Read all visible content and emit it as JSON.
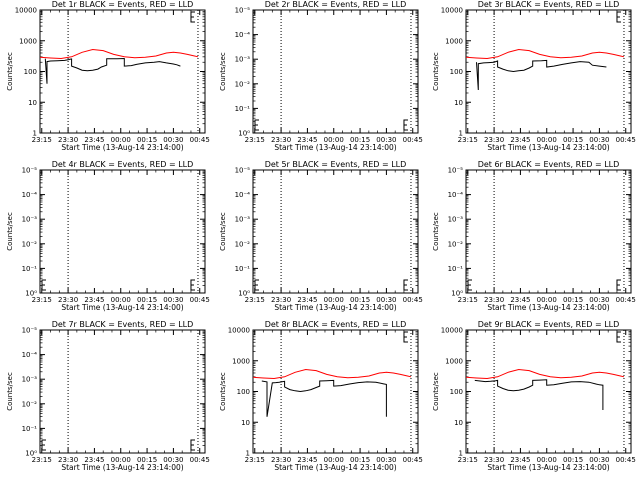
{
  "figure": {
    "x_label": "Start Time (13-Aug-14 23:14:00)",
    "y_label": "Counts/sec"
  },
  "colors": {
    "events": "#000000",
    "lld": "#ff0000",
    "axes": "#000000",
    "marker_lines": "#000000"
  },
  "chart_data": [
    {
      "type": "line",
      "title": "Det 1r BLACK = Events, RED = LLD",
      "x_ticks": [
        "23:15",
        "23:30",
        "23:45",
        "00:00",
        "00:15",
        "00:30",
        "00:45"
      ],
      "y_ticks": [
        "1",
        "10",
        "100",
        "1000",
        "10000"
      ],
      "y_scale": "log",
      "y_range": [
        1,
        10000
      ],
      "x_range_minutes": [
        0,
        94
      ],
      "vertical_markers_minutes": [
        16,
        90
      ],
      "series": [
        {
          "name": "LLD",
          "color": "#ff0000",
          "x": [
            0,
            6,
            12,
            18,
            24,
            30,
            36,
            42,
            48,
            54,
            60,
            66,
            72,
            76,
            80,
            84,
            88,
            90
          ],
          "y": [
            290,
            275,
            265,
            300,
            420,
            520,
            480,
            360,
            300,
            280,
            290,
            320,
            400,
            420,
            400,
            360,
            320,
            300
          ]
        },
        {
          "name": "Events",
          "color": "#000000",
          "x": [
            3,
            4,
            4,
            6,
            10,
            14,
            16,
            17,
            18,
            18,
            21,
            24,
            27,
            30,
            33,
            35,
            38,
            38,
            44,
            48,
            48,
            52,
            55,
            60,
            65,
            68,
            72,
            76,
            78,
            80
          ],
          "y": [
            260,
            40,
            210,
            220,
            225,
            230,
            240,
            250,
            255,
            150,
            130,
            110,
            105,
            110,
            120,
            140,
            160,
            260,
            260,
            265,
            150,
            155,
            170,
            190,
            200,
            210,
            190,
            175,
            165,
            150
          ]
        }
      ]
    },
    {
      "type": "line",
      "title": "Det 2r BLACK = Events, RED = LLD",
      "x_ticks": [
        "23:15",
        "23:30",
        "23:45",
        "00:00",
        "00:15",
        "00:30",
        "00:45"
      ],
      "y_ticks": [
        "10⁰",
        "10⁻¹",
        "10⁻²",
        "10⁻³",
        "10⁻⁴",
        "10⁻⁵"
      ],
      "y_scale": "log",
      "x_range_minutes": [
        0,
        94
      ],
      "vertical_markers_minutes": [
        16,
        90
      ],
      "series": []
    },
    {
      "type": "line",
      "title": "Det 3r BLACK = Events, RED = LLD",
      "x_ticks": [
        "23:15",
        "23:30",
        "23:45",
        "00:00",
        "00:15",
        "00:30",
        "00:45"
      ],
      "y_ticks": [
        "1",
        "10",
        "100",
        "1000",
        "10000"
      ],
      "y_scale": "log",
      "y_range": [
        1,
        10000
      ],
      "x_range_minutes": [
        0,
        94
      ],
      "vertical_markers_minutes": [
        16,
        90
      ],
      "series": [
        {
          "name": "LLD",
          "color": "#ff0000",
          "x": [
            0,
            6,
            12,
            18,
            24,
            30,
            36,
            42,
            48,
            54,
            60,
            66,
            72,
            76,
            80,
            84,
            88,
            90
          ],
          "y": [
            290,
            275,
            265,
            300,
            420,
            520,
            480,
            360,
            300,
            280,
            290,
            320,
            400,
            420,
            400,
            360,
            320,
            300
          ]
        },
        {
          "name": "Events",
          "color": "#000000",
          "x": [
            6,
            7,
            7,
            10,
            13,
            16,
            17,
            18,
            18,
            21,
            24,
            27,
            30,
            33,
            36,
            38,
            38,
            43,
            46,
            46,
            50,
            55,
            60,
            65,
            70,
            72,
            76,
            80
          ],
          "y": [
            200,
            25,
            180,
            190,
            195,
            200,
            210,
            220,
            140,
            120,
            105,
            100,
            105,
            110,
            130,
            150,
            220,
            225,
            230,
            140,
            150,
            170,
            190,
            210,
            200,
            160,
            150,
            140
          ]
        }
      ]
    },
    {
      "type": "line",
      "title": "Det 4r BLACK = Events, RED = LLD",
      "x_ticks": [
        "23:15",
        "23:30",
        "23:45",
        "00:00",
        "00:15",
        "00:30",
        "00:45"
      ],
      "y_ticks": [
        "10⁰",
        "10⁻¹",
        "10⁻²",
        "10⁻³",
        "10⁻⁴",
        "10⁻⁵"
      ],
      "y_scale": "log",
      "x_range_minutes": [
        0,
        94
      ],
      "vertical_markers_minutes": [
        16,
        90
      ],
      "series": []
    },
    {
      "type": "line",
      "title": "Det 5r BLACK = Events, RED = LLD",
      "x_ticks": [
        "23:15",
        "23:30",
        "23:45",
        "00:00",
        "00:15",
        "00:30",
        "00:45"
      ],
      "y_ticks": [
        "10⁰",
        "10⁻¹",
        "10⁻²",
        "10⁻³",
        "10⁻⁴",
        "10⁻⁵"
      ],
      "y_scale": "log",
      "x_range_minutes": [
        0,
        94
      ],
      "vertical_markers_minutes": [
        16,
        90
      ],
      "series": []
    },
    {
      "type": "line",
      "title": "Det 6r BLACK = Events, RED = LLD",
      "x_ticks": [
        "23:15",
        "23:30",
        "23:45",
        "00:00",
        "00:15",
        "00:30",
        "00:45"
      ],
      "y_ticks": [
        "10⁰",
        "10⁻¹",
        "10⁻²",
        "10⁻³",
        "10⁻⁴",
        "10⁻⁵"
      ],
      "y_scale": "log",
      "x_range_minutes": [
        0,
        94
      ],
      "vertical_markers_minutes": [
        16,
        90
      ],
      "series": []
    },
    {
      "type": "line",
      "title": "Det 7r BLACK = Events, RED = LLD",
      "x_ticks": [
        "23:15",
        "23:30",
        "23:45",
        "00:00",
        "00:15",
        "00:30",
        "00:45"
      ],
      "y_ticks": [
        "10⁰",
        "10⁻¹",
        "10⁻²",
        "10⁻³",
        "10⁻⁴",
        "10⁻⁵"
      ],
      "y_scale": "log",
      "x_range_minutes": [
        0,
        94
      ],
      "vertical_markers_minutes": [
        16,
        90
      ],
      "series": []
    },
    {
      "type": "line",
      "title": "Det 8r BLACK = Events, RED = LLD",
      "x_ticks": [
        "23:15",
        "23:30",
        "23:45",
        "00:00",
        "00:15",
        "00:30",
        "00:45"
      ],
      "y_ticks": [
        "1",
        "10",
        "100",
        "1000",
        "10000"
      ],
      "y_scale": "log",
      "y_range": [
        1,
        10000
      ],
      "x_range_minutes": [
        0,
        94
      ],
      "vertical_markers_minutes": [
        16,
        90
      ],
      "series": [
        {
          "name": "LLD",
          "color": "#ff0000",
          "x": [
            0,
            6,
            12,
            18,
            24,
            30,
            36,
            42,
            48,
            54,
            60,
            66,
            72,
            76,
            80,
            84,
            88,
            90
          ],
          "y": [
            290,
            275,
            265,
            300,
            420,
            520,
            480,
            360,
            300,
            280,
            290,
            320,
            400,
            420,
            400,
            360,
            320,
            300
          ]
        },
        {
          "name": "Events",
          "color": "#000000",
          "x": [
            5,
            8,
            8,
            11,
            13,
            15,
            17,
            18,
            18,
            21,
            24,
            27,
            30,
            33,
            36,
            38,
            38,
            42,
            46,
            46,
            50,
            55,
            60,
            65,
            70,
            74,
            76,
            76
          ],
          "y": [
            220,
            205,
            15,
            190,
            195,
            200,
            210,
            215,
            140,
            115,
            105,
            100,
            105,
            115,
            135,
            150,
            220,
            225,
            230,
            150,
            155,
            175,
            195,
            205,
            200,
            180,
            170,
            15
          ]
        }
      ]
    },
    {
      "type": "line",
      "title": "Det 9r BLACK = Events, RED = LLD",
      "x_ticks": [
        "23:15",
        "23:30",
        "23:45",
        "00:00",
        "00:15",
        "00:30",
        "00:45"
      ],
      "y_ticks": [
        "1",
        "10",
        "100",
        "1000",
        "10000"
      ],
      "y_scale": "log",
      "y_range": [
        1,
        10000
      ],
      "x_range_minutes": [
        0,
        94
      ],
      "vertical_markers_minutes": [
        16,
        90
      ],
      "series": [
        {
          "name": "LLD",
          "color": "#ff0000",
          "x": [
            0,
            6,
            12,
            18,
            24,
            30,
            36,
            42,
            48,
            54,
            60,
            66,
            72,
            76,
            80,
            84,
            88,
            90
          ],
          "y": [
            290,
            275,
            265,
            300,
            420,
            520,
            480,
            360,
            300,
            280,
            290,
            320,
            400,
            420,
            400,
            360,
            320,
            300
          ]
        },
        {
          "name": "Events",
          "color": "#000000",
          "x": [
            5,
            8,
            11,
            14,
            17,
            18,
            18,
            21,
            24,
            27,
            30,
            33,
            36,
            38,
            38,
            42,
            46,
            46,
            50,
            55,
            60,
            65,
            70,
            74,
            76,
            78,
            78
          ],
          "y": [
            230,
            220,
            210,
            215,
            225,
            230,
            150,
            125,
            110,
            105,
            110,
            120,
            140,
            160,
            230,
            235,
            240,
            160,
            165,
            185,
            205,
            210,
            200,
            175,
            165,
            160,
            25
          ]
        }
      ]
    }
  ]
}
